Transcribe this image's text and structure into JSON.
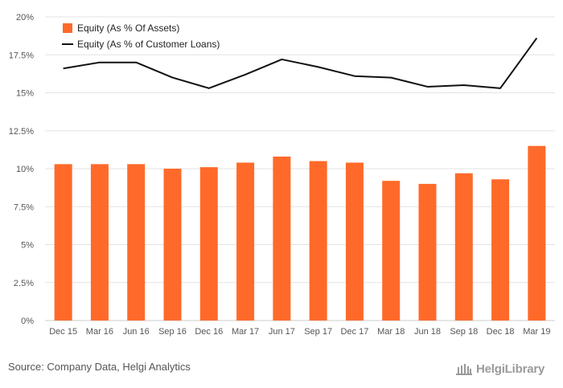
{
  "colors": {
    "bar": "#ff6a2a",
    "line": "#111111",
    "grid": "#e3e3e3",
    "axis_text": "#555555"
  },
  "chart_data": {
    "type": "bar",
    "categories": [
      "Dec 15",
      "Mar 16",
      "Jun 16",
      "Sep 16",
      "Dec 16",
      "Mar 17",
      "Jun 17",
      "Sep 17",
      "Dec 17",
      "Mar 18",
      "Jun 18",
      "Sep 18",
      "Dec 18",
      "Mar 19"
    ],
    "series": [
      {
        "name": "Equity (As % Of Assets)",
        "type": "bar",
        "values": [
          10.3,
          10.3,
          10.3,
          10.0,
          10.1,
          10.4,
          10.8,
          10.5,
          10.4,
          9.2,
          9.0,
          9.7,
          9.3,
          11.5
        ]
      },
      {
        "name": "Equity (As % of Customer Loans)",
        "type": "line",
        "values": [
          16.6,
          17.0,
          17.0,
          16.0,
          15.3,
          16.2,
          17.2,
          16.7,
          16.1,
          16.0,
          15.4,
          15.5,
          15.3,
          18.6
        ]
      }
    ],
    "yticks": [
      "0%",
      "2.5%",
      "5%",
      "7.5%",
      "10%",
      "12.5%",
      "15%",
      "17.5%",
      "20%"
    ],
    "ylim": [
      0,
      20
    ],
    "grid": true,
    "legend_position": "top-left",
    "title": "",
    "xlabel": "",
    "ylabel": ""
  },
  "footer": {
    "source": "Source: Company Data, Helgi Analytics",
    "logo_text": "HelgiLibrary"
  }
}
